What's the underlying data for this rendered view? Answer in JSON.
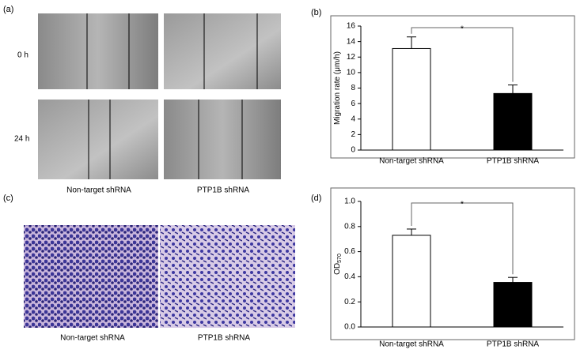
{
  "panels": {
    "a": {
      "label": "(a)",
      "rows": [
        "0 h",
        "24 h"
      ],
      "columns": [
        "Non-target shRNA",
        "PTP1B shRNA"
      ]
    },
    "c": {
      "label": "(c)",
      "columns": [
        "Non-target shRNA",
        "PTP1B shRNA"
      ]
    }
  },
  "chart_data": [
    {
      "type": "bar",
      "label": "(b)",
      "ylabel": "Migration rate (μm/h)",
      "categories": [
        "Non-target shRNA",
        "PTP1B shRNA"
      ],
      "values": [
        13.1,
        7.3
      ],
      "errors": [
        1.5,
        1.1
      ],
      "colors": [
        "#ffffff",
        "#000000"
      ],
      "ylim": [
        0,
        16
      ],
      "yticks": [
        0,
        2,
        4,
        6,
        8,
        10,
        12,
        14,
        16
      ],
      "annotation": "*"
    },
    {
      "type": "bar",
      "label": "(d)",
      "ylabel": "OD",
      "ylabel_sub": "570",
      "categories": [
        "Non-target shRNA",
        "PTP1B shRNA"
      ],
      "values": [
        0.73,
        0.355
      ],
      "errors": [
        0.05,
        0.04
      ],
      "colors": [
        "#ffffff",
        "#000000"
      ],
      "ylim": [
        0,
        1
      ],
      "yticks": [
        {
          "value": 0,
          "label": "0.0"
        },
        0.2,
        0.4,
        0.6,
        0.8,
        {
          "value": 1,
          "label": "1.0"
        }
      ],
      "annotation": "*"
    }
  ]
}
